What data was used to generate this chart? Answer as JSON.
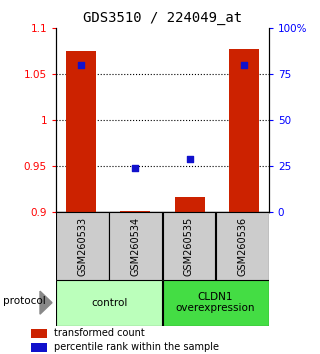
{
  "title": "GDS3510 / 224049_at",
  "samples": [
    "GSM260533",
    "GSM260534",
    "GSM260535",
    "GSM260536"
  ],
  "bar_values": [
    1.075,
    0.902,
    0.917,
    1.077
  ],
  "percentile_values": [
    80,
    24,
    29,
    80
  ],
  "ylim_left": [
    0.9,
    1.1
  ],
  "ylim_right": [
    0,
    100
  ],
  "yticks_left": [
    0.9,
    0.95,
    1.0,
    1.05,
    1.1
  ],
  "ytick_labels_left": [
    "0.9",
    "0.95",
    "1",
    "1.05",
    "1.1"
  ],
  "yticks_right": [
    0,
    25,
    50,
    75,
    100
  ],
  "ytick_labels_right": [
    "0",
    "25",
    "50",
    "75",
    "100%"
  ],
  "dotted_lines": [
    0.95,
    1.0,
    1.05
  ],
  "bar_color": "#cc2200",
  "dot_color": "#1111cc",
  "bar_width": 0.55,
  "groups": [
    {
      "label": "control",
      "samples": [
        0,
        1
      ],
      "color": "#bbffbb"
    },
    {
      "label": "CLDN1\noverexpression",
      "samples": [
        2,
        3
      ],
      "color": "#44dd44"
    }
  ],
  "protocol_label": "protocol",
  "legend_bar_label": "transformed count",
  "legend_dot_label": "percentile rank within the sample",
  "sample_box_color": "#cccccc",
  "title_fontsize": 10,
  "tick_fontsize": 7.5,
  "legend_fontsize": 7
}
